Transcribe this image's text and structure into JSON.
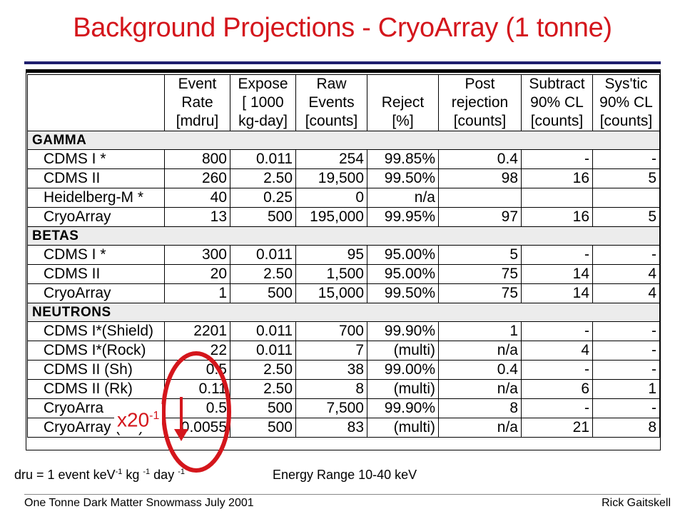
{
  "title": "Background Projections - CryoArray (1 tonne)",
  "columns": [
    {
      "lines": [
        "",
        "",
        ""
      ]
    },
    {
      "lines": [
        "Event",
        "Rate",
        "[mdru]"
      ]
    },
    {
      "lines": [
        "Expose",
        "[ 1000",
        "kg-day]"
      ]
    },
    {
      "lines": [
        "Raw",
        "Events",
        "[counts]"
      ]
    },
    {
      "lines": [
        "",
        "Reject",
        "[%]"
      ]
    },
    {
      "lines": [
        "Post",
        "rejection",
        "[counts]"
      ]
    },
    {
      "lines": [
        "Subtract",
        "90% CL",
        "[counts]"
      ]
    },
    {
      "lines": [
        "Sys'tic",
        "90% CL",
        "[counts]"
      ]
    }
  ],
  "sections": [
    {
      "name": "GAMMA",
      "rows": [
        [
          "CDMS I *",
          "800",
          "0.011",
          "254",
          "99.85%",
          "0.4",
          "-",
          "-"
        ],
        [
          "CDMS II",
          "260",
          "2.50",
          "19,500",
          "99.50%",
          "98",
          "16",
          "5"
        ],
        [
          "Heidelberg-M *",
          "40",
          "0.25",
          "0",
          "n/a",
          "",
          "",
          ""
        ],
        [
          "CryoArray",
          "13",
          "500",
          "195,000",
          "99.95%",
          "97",
          "16",
          "5"
        ]
      ]
    },
    {
      "name": "BETAS",
      "rows": [
        [
          "CDMS I *",
          "300",
          "0.011",
          "95",
          "95.00%",
          "5",
          "-",
          "-"
        ],
        [
          "CDMS II",
          "20",
          "2.50",
          "1,500",
          "95.00%",
          "75",
          "14",
          "4"
        ],
        [
          "CryoArray",
          "1",
          "500",
          "15,000",
          "99.50%",
          "75",
          "14",
          "4"
        ]
      ]
    },
    {
      "name": "NEUTRONS",
      "rows": [
        [
          "CDMS I*(Shield)",
          "2201",
          "0.011",
          "700",
          "99.90%",
          "1",
          "-",
          "-"
        ],
        [
          "CDMS I*(Rock)",
          "22",
          "0.011",
          "7",
          "(multi)",
          "n/a",
          "4",
          "-"
        ],
        [
          "CDMS II (Sh)",
          "0.5",
          "2.50",
          "38",
          "99.00%",
          "0.4",
          "-",
          "-"
        ],
        [
          "CDMS II (Rk)",
          "0.11",
          "2.50",
          "8",
          "(multi)",
          "n/a",
          "6",
          "1"
        ],
        [
          "CryoArra",
          "0.5",
          "500",
          "7,500",
          "99.90%",
          "8",
          "-",
          "-"
        ],
        [
          "CryoArray (Rk)",
          "0.0055",
          "500",
          "83",
          "(multi)",
          "n/a",
          "21",
          "8"
        ]
      ]
    }
  ],
  "footnote": {
    "dru_prefix": "dru = 1 event keV",
    "dru_exp1": "-1",
    "dru_mid1": " kg ",
    "dru_exp2": "-1",
    "dru_mid2": " day ",
    "dru_exp3": "-1",
    "energy_range": "Energy Range  10-40 keV"
  },
  "overlay": {
    "base": "x20",
    "exponent": "-1",
    "color": "#d4161c"
  },
  "footer": {
    "left": "One Tonne Dark Matter Snowmass July 2001",
    "right": "Rick Gaitskell"
  },
  "colors": {
    "title": "#d4161c",
    "rule": "#1f1f6e"
  }
}
